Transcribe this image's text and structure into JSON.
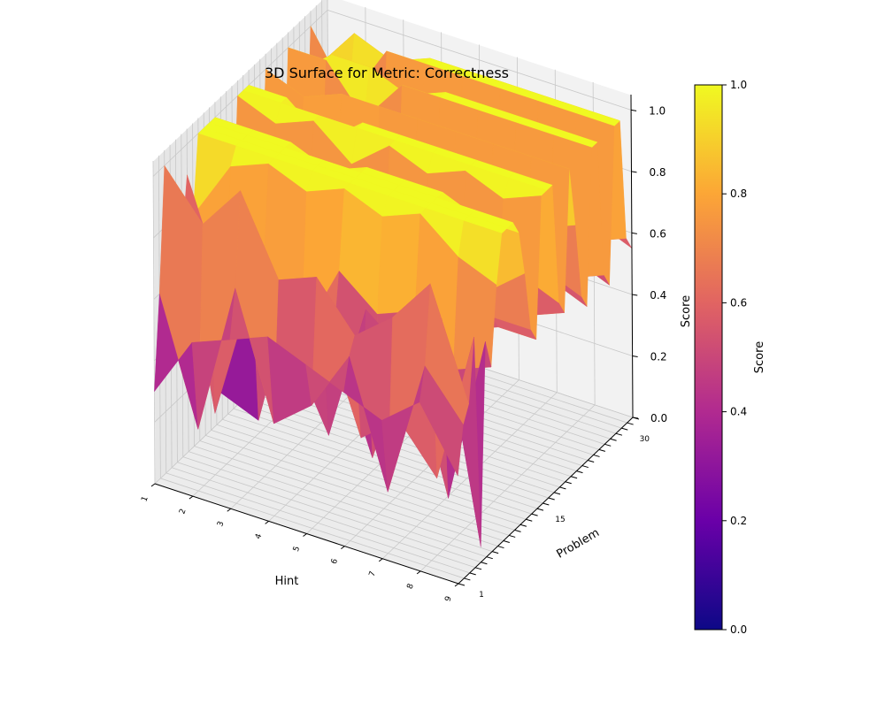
{
  "chart_data": {
    "type": "surface3d",
    "title": "3D Surface for Metric: Correctness",
    "xlabel": "Hint",
    "ylabel": "Problem",
    "zlabel": "Score",
    "x_ticks": [
      "1",
      "2",
      "3",
      "4",
      "5",
      "6",
      "7",
      "8",
      "9"
    ],
    "y_ticks": [
      "1",
      "15",
      "30"
    ],
    "z_ticks": [
      "0.0",
      "0.2",
      "0.4",
      "0.6",
      "0.8",
      "1.0"
    ],
    "zlim": [
      0,
      1.05
    ],
    "x_range": [
      1,
      9
    ],
    "y_range": [
      1,
      32
    ],
    "colormap": "plasma",
    "colorbar": {
      "label": "Score",
      "ticks": [
        "0.0",
        "0.2",
        "0.4",
        "0.6",
        "0.8",
        "1.0"
      ],
      "range": [
        0,
        1
      ],
      "stops": [
        "#0d0887",
        "#6a00a8",
        "#b12a90",
        "#e16462",
        "#fca636",
        "#f0f921"
      ]
    },
    "problems": [
      1,
      2,
      3,
      4,
      5,
      6,
      7,
      8,
      9,
      10,
      11,
      12,
      13,
      14,
      15,
      16,
      17,
      18,
      19,
      20,
      21,
      22,
      23,
      24,
      25,
      26,
      27,
      28,
      29,
      30,
      31,
      32
    ],
    "hints": [
      1,
      2,
      3,
      4,
      5,
      6,
      7,
      8,
      9
    ],
    "z": [
      [
        0.3,
        0.5,
        0.55,
        0.6,
        0.55,
        0.5,
        0.45,
        0.55,
        0.35
      ],
      [
        0.6,
        0.2,
        0.7,
        0.3,
        0.4,
        0.6,
        0.2,
        0.65,
        0.5
      ],
      [
        1.0,
        0.85,
        1.0,
        0.75,
        0.8,
        0.65,
        0.75,
        0.9,
        0.55
      ],
      [
        0.4,
        0.75,
        0.7,
        0.55,
        0.65,
        0.3,
        0.4,
        0.25,
        0.75
      ],
      [
        0.9,
        0.2,
        0.65,
        0.5,
        0.25,
        0.7,
        0.6,
        0.75,
        0.05
      ],
      [
        0.7,
        0.25,
        0.2,
        0.7,
        0.55,
        0.2,
        0.6,
        0.15,
        0.7
      ],
      [
        0.9,
        0.55,
        0.65,
        0.5,
        0.75,
        0.65,
        0.7,
        0.55,
        0.6
      ],
      [
        0.75,
        0.95,
        1.0,
        0.95,
        1.0,
        0.95,
        1.0,
        0.9,
        0.85
      ],
      [
        1.0,
        1.0,
        1.0,
        1.0,
        1.0,
        1.0,
        1.0,
        1.0,
        1.0
      ],
      [
        1.0,
        1.0,
        1.0,
        1.0,
        1.0,
        1.0,
        1.0,
        1.0,
        1.0
      ],
      [
        1.0,
        1.0,
        1.0,
        1.0,
        1.0,
        1.0,
        1.0,
        1.0,
        1.0
      ],
      [
        1.0,
        1.0,
        1.0,
        0.95,
        1.0,
        1.0,
        1.0,
        0.95,
        0.95
      ],
      [
        0.55,
        0.6,
        0.75,
        0.7,
        0.65,
        0.8,
        0.75,
        0.7,
        0.8
      ],
      [
        0.55,
        0.6,
        0.55,
        0.6,
        0.55,
        0.6,
        0.55,
        0.6,
        0.6
      ],
      [
        0.55,
        0.5,
        0.55,
        0.55,
        0.5,
        0.55,
        0.5,
        0.55,
        0.55
      ],
      [
        1.0,
        0.95,
        1.0,
        0.9,
        1.0,
        0.95,
        1.0,
        0.95,
        1.0
      ],
      [
        1.0,
        1.0,
        1.0,
        1.0,
        1.0,
        1.0,
        1.0,
        1.0,
        1.0
      ],
      [
        1.0,
        1.0,
        0.9,
        1.0,
        1.0,
        1.0,
        1.0,
        1.0,
        1.0
      ],
      [
        0.6,
        0.7,
        0.65,
        0.7,
        0.6,
        0.65,
        0.7,
        0.65,
        0.6
      ],
      [
        0.55,
        0.55,
        0.6,
        0.5,
        0.55,
        0.5,
        0.55,
        0.5,
        0.55
      ],
      [
        1.0,
        0.95,
        1.0,
        1.0,
        1.0,
        1.0,
        1.0,
        1.0,
        1.0
      ],
      [
        0.8,
        0.75,
        0.8,
        0.75,
        0.8,
        0.75,
        0.8,
        0.75,
        0.8
      ],
      [
        0.55,
        0.6,
        0.55,
        0.6,
        0.55,
        0.6,
        0.55,
        0.6,
        0.55
      ],
      [
        0.5,
        0.55,
        0.5,
        0.55,
        0.5,
        0.55,
        0.5,
        0.55,
        0.5
      ],
      [
        1.0,
        1.0,
        0.85,
        1.0,
        1.0,
        1.0,
        1.0,
        1.0,
        1.0
      ],
      [
        0.9,
        1.0,
        1.0,
        0.95,
        1.0,
        1.0,
        1.0,
        1.0,
        1.0
      ],
      [
        0.55,
        0.45,
        0.6,
        0.55,
        0.5,
        0.6,
        0.55,
        0.5,
        0.55
      ],
      [
        0.5,
        0.55,
        0.5,
        0.55,
        0.5,
        0.55,
        0.5,
        0.55,
        0.5
      ],
      [
        1.0,
        0.8,
        1.0,
        1.0,
        1.0,
        1.0,
        1.0,
        1.0,
        1.0
      ],
      [
        0.85,
        1.0,
        0.95,
        1.0,
        1.0,
        1.0,
        1.0,
        1.0,
        1.0
      ],
      [
        0.6,
        0.55,
        0.6,
        0.55,
        0.6,
        0.55,
        0.6,
        0.55,
        0.6
      ],
      [
        0.55,
        0.6,
        0.55,
        0.6,
        0.55,
        0.6,
        0.55,
        0.6,
        0.55
      ]
    ]
  }
}
